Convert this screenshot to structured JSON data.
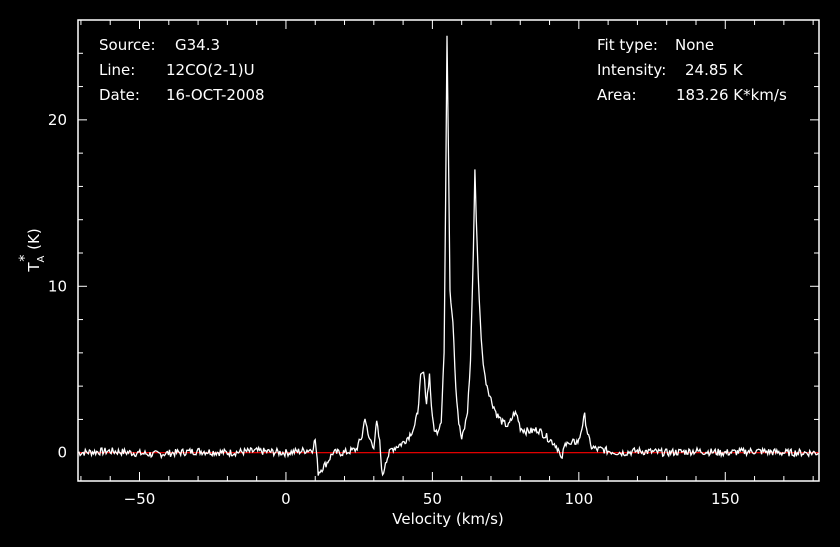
{
  "header": {
    "source_label": "Source:",
    "source_value": "G34.3",
    "line_label": "Line:",
    "line_value": "12CO(2-1)U",
    "date_label": "Date:",
    "date_value": "16-OCT-2008",
    "fit_label": "Fit type:",
    "fit_value": "None",
    "intensity_label": "Intensity:",
    "intensity_value": "24.85 K",
    "area_label": "Area:",
    "area_value": "183.26 K*km/s"
  },
  "colors": {
    "background": "#000000",
    "spectrum": "#ffffff",
    "baseline": "#ff0000"
  },
  "chart_data": {
    "type": "line",
    "xlabel": "Velocity (km/s)",
    "ylabel_main": "T",
    "ylabel_sub": "A",
    "ylabel_sup": "*",
    "ylabel_unit": " (K)",
    "xlim": [
      -71,
      182
    ],
    "ylim": [
      -1.7,
      26
    ],
    "x_ticks": [
      -50,
      0,
      50,
      100,
      150
    ],
    "x_tick_labels": [
      "−50",
      "0",
      "50",
      "100",
      "150"
    ],
    "y_ticks": [
      0,
      10,
      20
    ],
    "y_tick_labels": [
      "0",
      "10",
      "20"
    ],
    "baseline_y": 0,
    "grid": false,
    "series": [
      {
        "x": [
          -71,
          -60,
          -45,
          -30,
          -20,
          -10,
          0,
          5,
          9,
          10,
          11,
          12,
          14,
          16,
          18,
          20,
          24,
          26,
          27,
          28,
          30,
          31,
          32,
          33,
          34,
          36,
          38,
          40,
          42,
          44,
          45,
          46,
          47,
          48,
          49,
          50,
          51,
          52,
          53,
          54,
          54.5,
          55,
          55.5,
          56,
          57,
          58,
          59,
          60,
          61,
          62,
          63,
          64,
          64.5,
          65,
          66,
          67,
          68,
          70,
          72,
          74,
          76,
          78,
          79,
          80,
          82,
          84,
          86,
          88,
          90,
          92,
          93,
          94,
          95,
          96,
          97,
          98,
          100,
          101,
          102,
          103,
          104,
          106,
          108,
          110,
          115,
          120,
          130,
          140,
          150,
          160,
          170,
          182
        ],
        "y": [
          0,
          0.1,
          -0.1,
          0.1,
          0,
          0.1,
          0,
          0.1,
          0.2,
          0.8,
          -1.2,
          -1.0,
          -0.6,
          0,
          0,
          0,
          0.2,
          1.0,
          2.2,
          1.0,
          0.4,
          1.8,
          0.6,
          -1.5,
          -0.5,
          0.2,
          0.4,
          0.6,
          1.0,
          1.6,
          2.5,
          4.5,
          4.8,
          3.0,
          4.7,
          2.0,
          1.2,
          1.4,
          2.0,
          6.0,
          15.0,
          24.85,
          18.0,
          9.8,
          8.0,
          4.0,
          1.8,
          0.8,
          1.5,
          2.5,
          5.5,
          12.0,
          17.2,
          14.0,
          9.0,
          6.0,
          4.5,
          3.2,
          2.3,
          1.8,
          1.6,
          2.4,
          2.2,
          1.5,
          1.3,
          1.3,
          1.4,
          1.1,
          0.8,
          0.5,
          0.2,
          -0.5,
          0.3,
          0.8,
          0.4,
          0.6,
          0.7,
          1.5,
          2.2,
          1.2,
          0.4,
          0.2,
          0.2,
          0.1,
          0,
          0.1,
          0,
          0.1,
          0,
          0.1,
          0,
          0
        ]
      }
    ]
  }
}
